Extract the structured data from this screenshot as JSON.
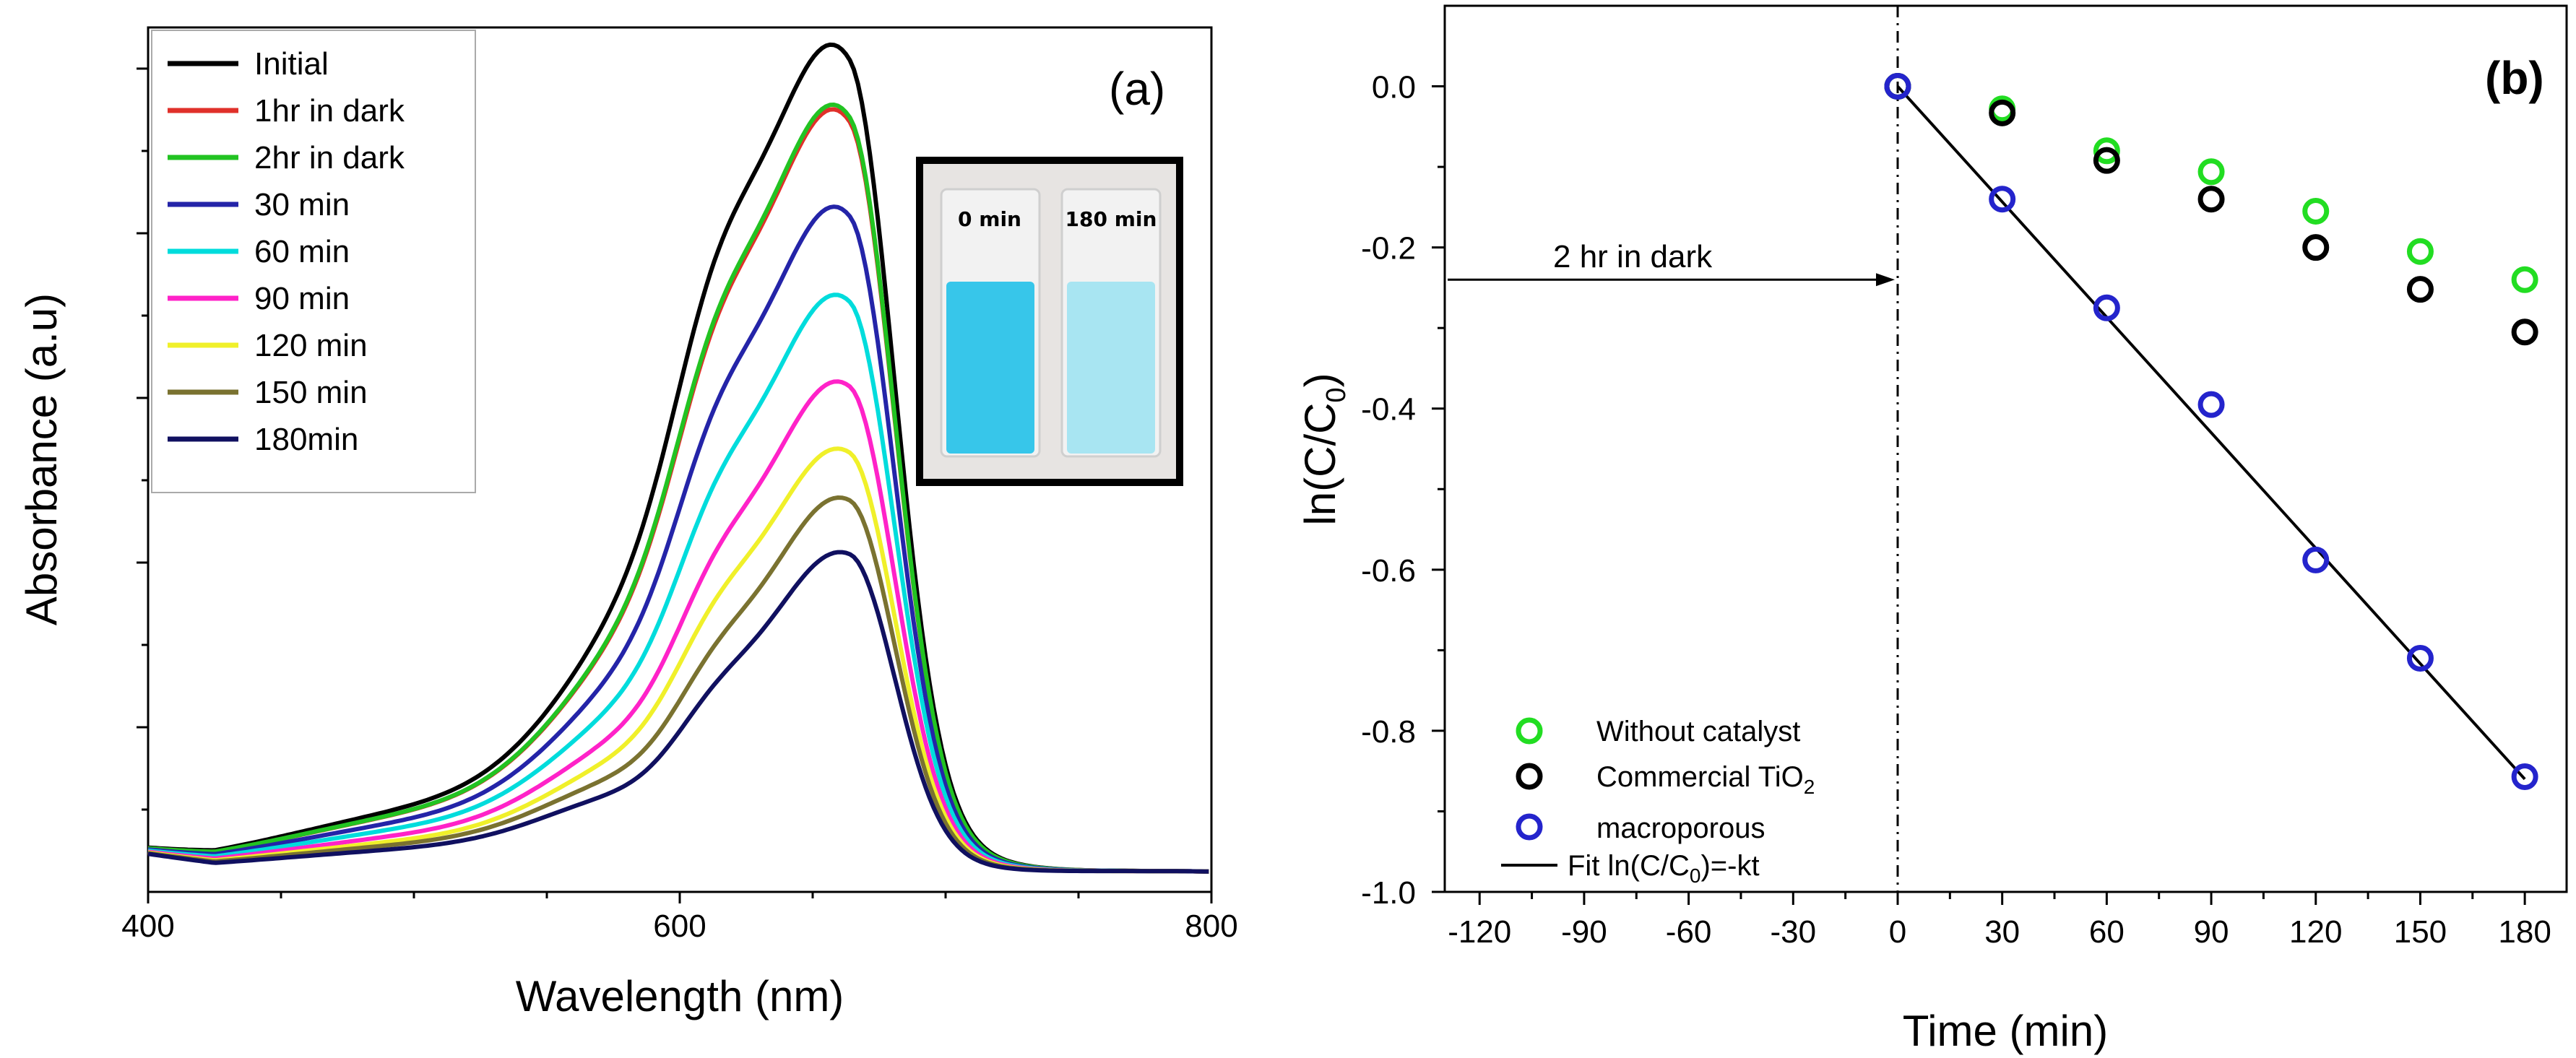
{
  "chart_data": [
    {
      "type": "line",
      "panel_label": "(a)",
      "xlabel": "Wavelength (nm)",
      "ylabel": "Absorbance (a.u)",
      "xlim": [
        400,
        800
      ],
      "ylim": [
        0,
        1.0
      ],
      "xticks": [
        400,
        600,
        800
      ],
      "yticks_labeled": false,
      "legend_position": "top-left",
      "inset": {
        "labels": [
          "0 min",
          "180 min"
        ]
      },
      "series": [
        {
          "name": "Initial",
          "color": "#000000",
          "peak": 0.98,
          "shoulder": 0.715
        },
        {
          "name": "1hr in dark",
          "color": "#e0302a",
          "peak": 0.91,
          "shoulder": 0.645
        },
        {
          "name": "2hr in dark",
          "color": "#22c322",
          "peak": 0.915,
          "shoulder": 0.65
        },
        {
          "name": "30 min",
          "color": "#2424a8",
          "peak": 0.8,
          "shoulder": 0.55
        },
        {
          "name": "60 min",
          "color": "#00dcdc",
          "peak": 0.7,
          "shoulder": 0.465
        },
        {
          "name": "90 min",
          "color": "#ff22c8",
          "peak": 0.6,
          "shoulder": 0.385
        },
        {
          "name": "120 min",
          "color": "#f0f02a",
          "peak": 0.52,
          "shoulder": 0.33
        },
        {
          "name": "150 min",
          "color": "#7a7230",
          "peak": 0.465,
          "shoulder": 0.28
        },
        {
          "name": "180min",
          "color": "#101060",
          "peak": 0.4,
          "shoulder": 0.235
        }
      ]
    },
    {
      "type": "scatter",
      "panel_label": "(b)",
      "xlabel": "Time (min)",
      "ylabel_main": "ln(C/C",
      "ylabel_sub": "0",
      "ylabel_end": ")",
      "xlim": [
        -130,
        192
      ],
      "ylim": [
        -1.0,
        0.1
      ],
      "xticks": [
        -120,
        -90,
        -60,
        -30,
        0,
        30,
        60,
        90,
        120,
        150,
        180
      ],
      "yticks": [
        0.0,
        -0.2,
        -0.4,
        -0.6,
        -0.8,
        -1.0
      ],
      "ytick_labels": [
        "0.0",
        "-0.2",
        "-0.4",
        "-0.6",
        "-0.8",
        "-1.0"
      ],
      "annotation": "2 hr in dark",
      "legend_position": "bottom-left",
      "legend": {
        "without": "Without catalyst",
        "tio2_main": "Commercial TiO",
        "tio2_sub": "2",
        "macro": "macroporous",
        "fit_main": "Fit ln(C/C",
        "fit_sub": "0",
        "fit_end": ")=-kt"
      },
      "series": [
        {
          "name": "Without catalyst",
          "color": "#22dd22",
          "x": [
            0,
            30,
            60,
            90,
            120,
            150,
            180
          ],
          "y": [
            0.0,
            -0.028,
            -0.08,
            -0.106,
            -0.155,
            -0.205,
            -0.24
          ]
        },
        {
          "name": "Commercial TiO2",
          "color": "#000000",
          "x": [
            0,
            30,
            60,
            90,
            120,
            150,
            180
          ],
          "y": [
            0.0,
            -0.033,
            -0.092,
            -0.14,
            -0.2,
            -0.252,
            -0.305
          ]
        },
        {
          "name": "macroporous",
          "color": "#2424cc",
          "x": [
            0,
            30,
            60,
            90,
            120,
            150,
            180
          ],
          "y": [
            0.0,
            -0.14,
            -0.275,
            -0.395,
            -0.588,
            -0.71,
            -0.857
          ]
        }
      ],
      "fit": {
        "name": "Fit ln(C/C0)=-kt",
        "x": [
          0,
          180
        ],
        "y": [
          0.0,
          -0.86
        ]
      }
    }
  ]
}
